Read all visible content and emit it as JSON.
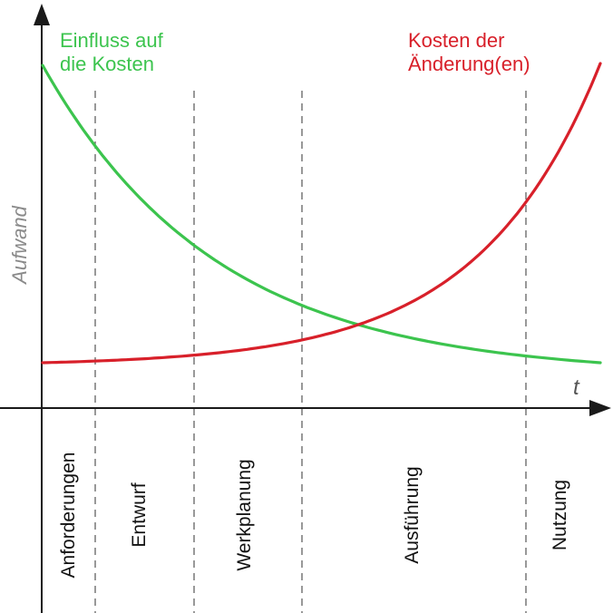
{
  "labels": {
    "influence_line1": "Einfluss auf",
    "influence_line2": "die Kosten",
    "cost_line1": "Kosten der",
    "cost_line2": "Änderung(en)",
    "y_axis": "Aufwand",
    "x_axis": "t"
  },
  "phases": [
    "Anforderungen",
    "Entwurf",
    "Werkplanung",
    "Ausführung",
    "Nutzung"
  ],
  "colors": {
    "influence": "#3cc44e",
    "cost": "#d8202a",
    "axis": "#1a1a1a",
    "divider": "#555555"
  }
}
